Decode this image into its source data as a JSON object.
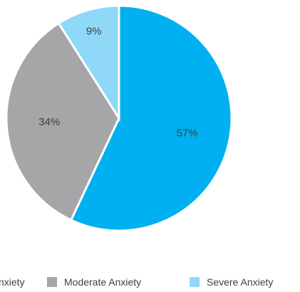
{
  "chart_data": {
    "type": "pie",
    "slices": [
      {
        "label": "Mild Anxiety",
        "value": 57,
        "label_text": "57%",
        "color": "#00B0F0"
      },
      {
        "label": "Moderate Anxiety",
        "value": 34,
        "label_text": "34%",
        "color": "#A6A6A8"
      },
      {
        "label": "Severe Anxiety",
        "value": 9,
        "label_text": "9%",
        "color": "#8FD8F8"
      }
    ],
    "legend": {
      "placement": "bottom",
      "visible_texts": [
        "nxiety",
        "Moderate Anxiety",
        "Severe Anxiety"
      ]
    }
  }
}
